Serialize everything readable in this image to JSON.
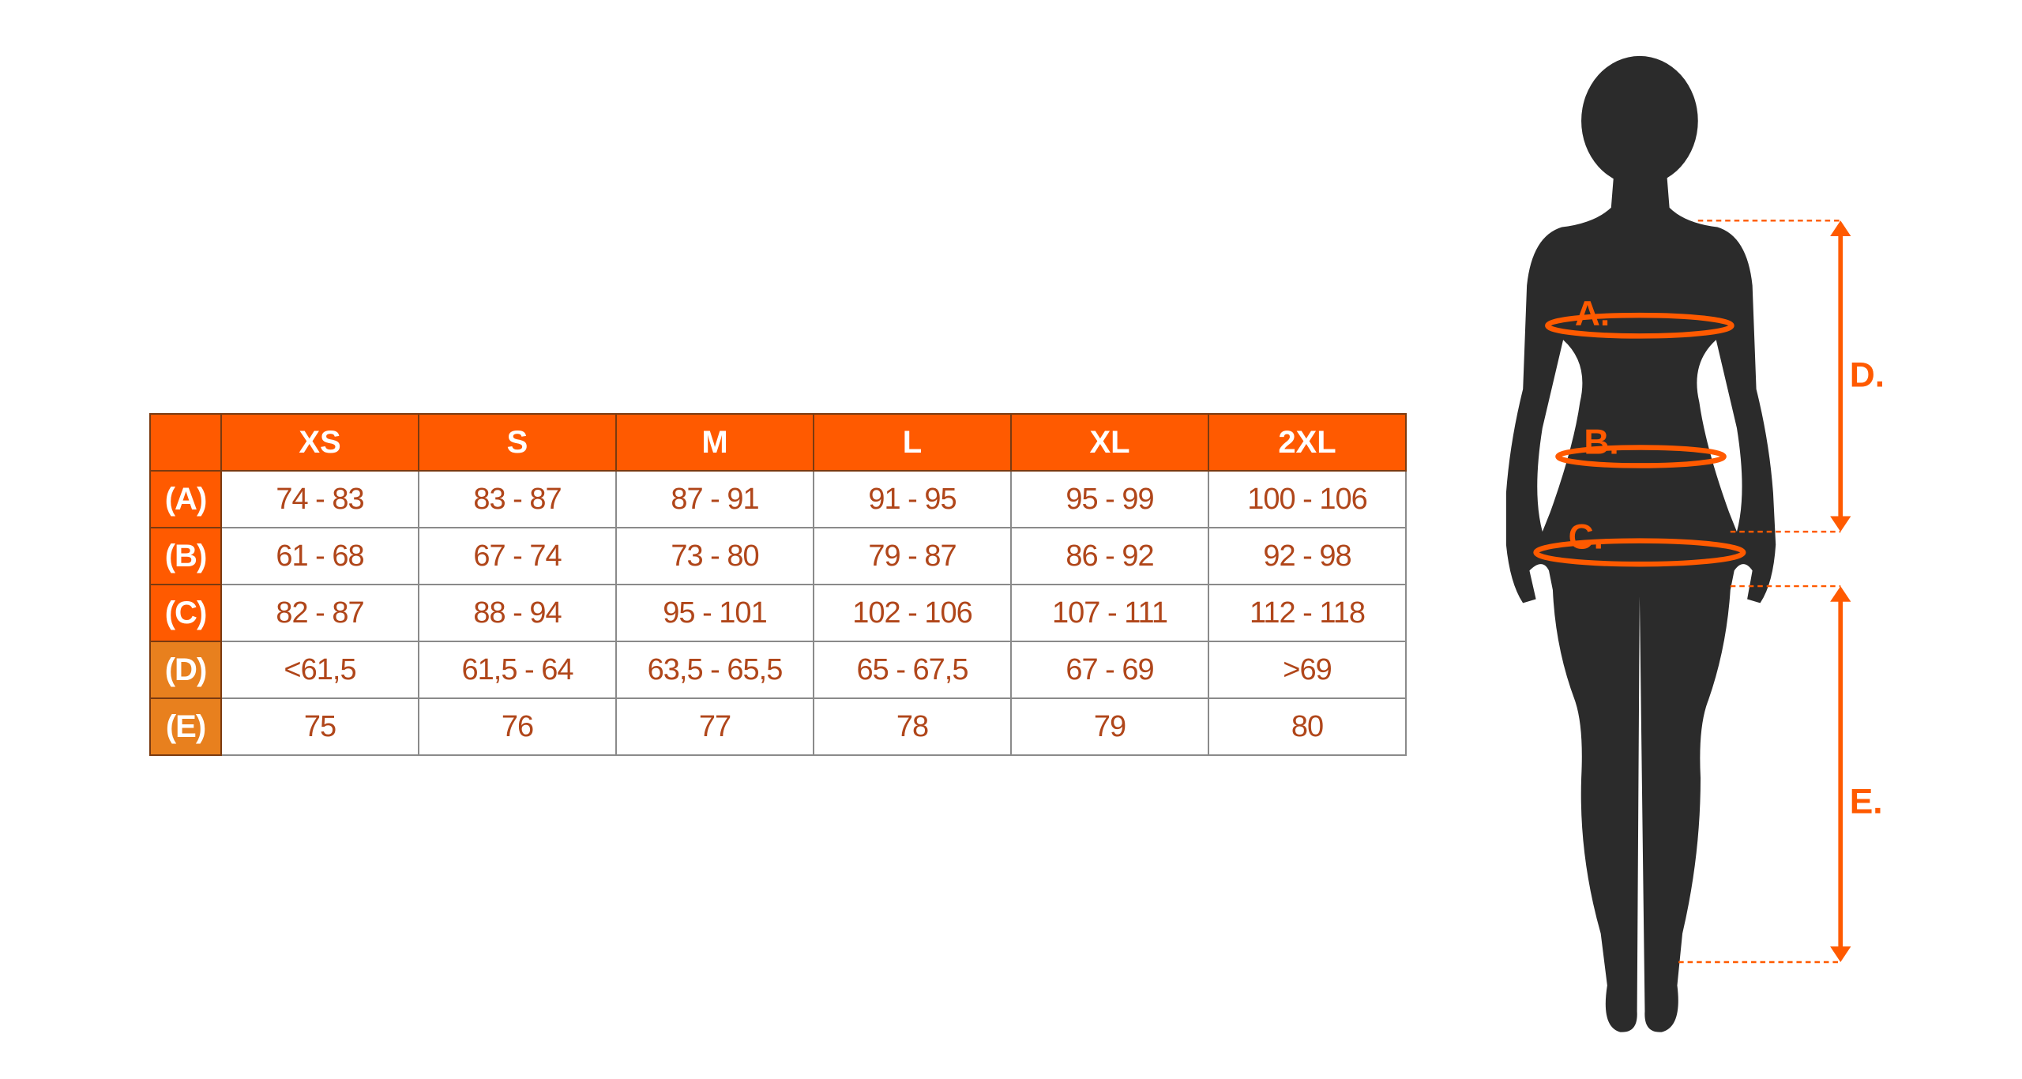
{
  "table": {
    "sizes": [
      "XS",
      "S",
      "M",
      "L",
      "XL",
      "2XL"
    ],
    "rows": [
      {
        "label": "(A)",
        "values": [
          "74 - 83",
          "83 - 87",
          "87 - 91",
          "91 - 95",
          "95 - 99",
          "100 - 106"
        ]
      },
      {
        "label": "(B)",
        "values": [
          "61 - 68",
          "67 - 74",
          "73 - 80",
          "79 - 87",
          "86 - 92",
          "92 - 98"
        ]
      },
      {
        "label": "(C)",
        "values": [
          "82 - 87",
          "88 - 94",
          "95 - 101",
          "102 - 106",
          "107 - 111",
          "112 - 118"
        ]
      },
      {
        "label": "(D)",
        "values": [
          "<61,5",
          "61,5 - 64",
          "63,5 - 65,5",
          "65 - 67,5",
          "67 - 69",
          ">69"
        ]
      },
      {
        "label": "(E)",
        "values": [
          "75",
          "76",
          "77",
          "78",
          "79",
          "80"
        ]
      }
    ]
  },
  "figure": {
    "labels": {
      "a": "A.",
      "b": "B.",
      "c": "C.",
      "d": "D.",
      "e": "E."
    }
  },
  "colors": {
    "accent": "#ff5a00",
    "accent_alt": "#e8801e",
    "silhouette": "#2b2b2b",
    "cell_text": "#b0461a"
  }
}
